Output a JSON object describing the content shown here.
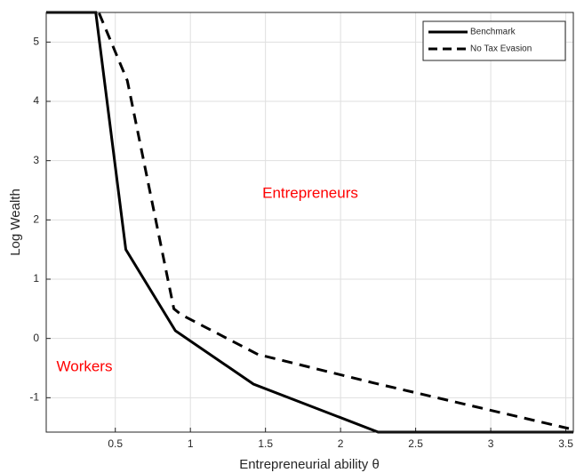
{
  "chart_data": {
    "type": "line",
    "xlabel": "Entrepreneurial ability θ",
    "ylabel": "Log Wealth",
    "annotations": [
      "Entrepreneurs",
      "Workers"
    ],
    "series": [
      {
        "name": "Benchmark",
        "color": "#000000",
        "dash": "solid",
        "x": [
          0.04,
          0.37,
          0.57,
          0.9,
          1.42,
          2.25,
          3.55
        ],
        "values": [
          5.5,
          5.5,
          1.5,
          0.13,
          -0.77,
          -1.58,
          -1.58
        ]
      },
      {
        "name": "No Tax Evasion",
        "color": "#000000",
        "dash": "dashed",
        "x": [
          0.04,
          0.39,
          0.58,
          0.89,
          0.94,
          1.45,
          2.22,
          3.52
        ],
        "values": [
          5.5,
          5.5,
          4.35,
          0.5,
          0.4,
          -0.27,
          -0.75,
          -1.52
        ]
      }
    ],
    "xlim": [
      0.04,
      3.55
    ],
    "ylim": [
      -1.58,
      5.5
    ],
    "xticks": [
      0.5,
      1,
      1.5,
      2,
      2.5,
      3,
      3.5
    ],
    "yticks": [
      -1,
      0,
      1,
      2,
      3,
      4,
      5
    ],
    "grid": true,
    "legend": "northeast"
  }
}
